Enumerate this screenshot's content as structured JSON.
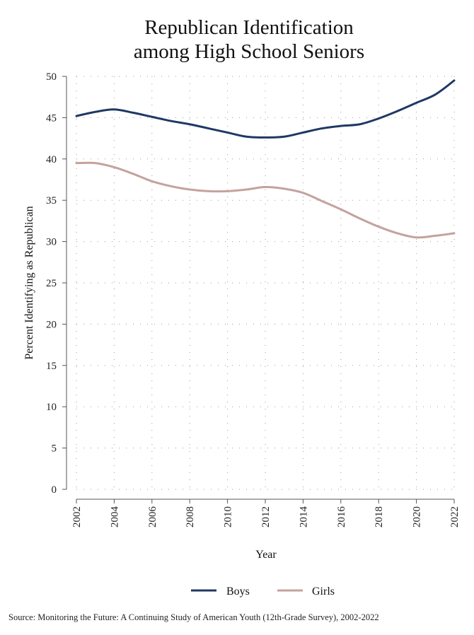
{
  "chart_data": {
    "type": "line",
    "title_lines": [
      "Republican Identification",
      "among High School Seniors"
    ],
    "xlabel": "Year",
    "ylabel": "Percent Identifying as Republican",
    "xlim": [
      2002,
      2022
    ],
    "ylim": [
      0,
      50
    ],
    "x_ticks": [
      "2002",
      "2004",
      "2006",
      "2008",
      "2010",
      "2012",
      "2014",
      "2016",
      "2018",
      "2020",
      "2022"
    ],
    "y_ticks": [
      "0",
      "5",
      "10",
      "15",
      "20",
      "25",
      "30",
      "35",
      "40",
      "45",
      "50"
    ],
    "grid": true,
    "legend_position": "bottom",
    "x": [
      2002,
      2003,
      2004,
      2005,
      2006,
      2007,
      2008,
      2009,
      2010,
      2011,
      2012,
      2013,
      2014,
      2015,
      2016,
      2017,
      2018,
      2019,
      2020,
      2021,
      2022
    ],
    "series": [
      {
        "name": "Boys",
        "color": "#1f3864",
        "values": [
          45.2,
          45.7,
          46.0,
          45.6,
          45.1,
          44.6,
          44.2,
          43.7,
          43.2,
          42.7,
          42.6,
          42.7,
          43.2,
          43.7,
          44.0,
          44.2,
          44.9,
          45.8,
          46.8,
          47.8,
          49.5
        ]
      },
      {
        "name": "Girls",
        "color": "#c4a29e",
        "values": [
          39.5,
          39.5,
          39.0,
          38.2,
          37.3,
          36.7,
          36.3,
          36.1,
          36.1,
          36.3,
          36.6,
          36.4,
          35.9,
          34.9,
          33.9,
          32.8,
          31.8,
          31.0,
          30.5,
          30.7,
          31.0
        ]
      }
    ],
    "source": "Source: Monitoring the Future: A Continuing Study of American Youth (12th-Grade Survey), 2002-2022"
  }
}
